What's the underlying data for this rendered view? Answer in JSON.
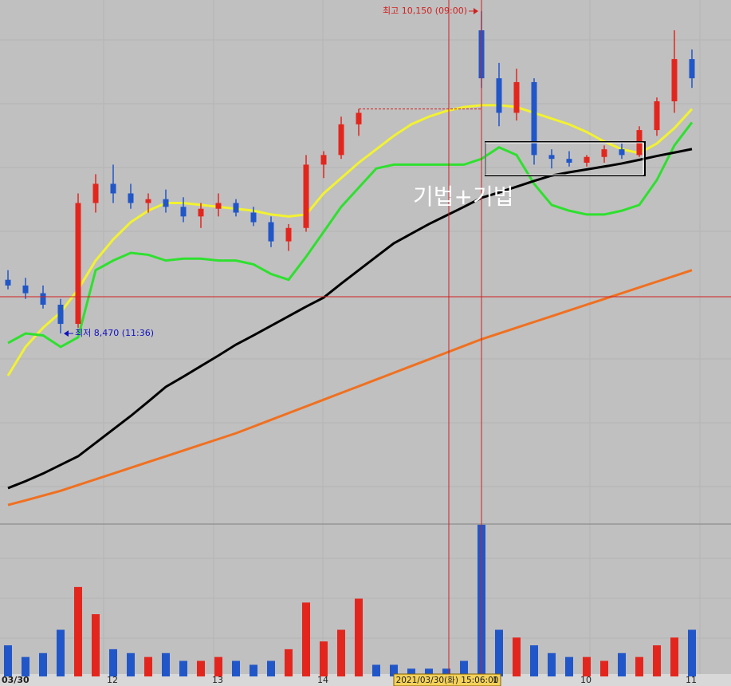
{
  "chart_data": {
    "type": "candlestick",
    "categories": [
      "03/30",
      null,
      null,
      null,
      null,
      null,
      "12",
      null,
      null,
      null,
      null,
      null,
      "13",
      null,
      null,
      null,
      null,
      null,
      "14",
      null,
      null,
      null,
      null,
      null,
      null,
      null,
      null,
      null,
      "1",
      null,
      null,
      null,
      null,
      "10",
      null,
      null,
      null,
      null,
      null,
      "11"
    ],
    "open": [
      8750,
      8720,
      8680,
      8620,
      8520,
      9150,
      9250,
      9200,
      9150,
      9170,
      9130,
      9080,
      9120,
      9150,
      9100,
      9050,
      8950,
      9020,
      9350,
      9400,
      9560,
      null,
      null,
      null,
      null,
      null,
      null,
      10050,
      9800,
      9620,
      9780,
      9400,
      9380,
      9360,
      9390,
      9430,
      9400,
      9530,
      9680,
      9900
    ],
    "high": [
      8800,
      8760,
      8720,
      8650,
      9200,
      9300,
      9350,
      9250,
      9200,
      9220,
      9180,
      9150,
      9200,
      9170,
      9130,
      9080,
      9040,
      9400,
      9420,
      9600,
      9640,
      null,
      null,
      null,
      null,
      null,
      null,
      10150,
      9880,
      9850,
      9800,
      9430,
      9420,
      9400,
      9450,
      9460,
      9550,
      9700,
      10050,
      9950
    ],
    "low": [
      8700,
      8650,
      8600,
      8470,
      8500,
      9100,
      9150,
      9120,
      9100,
      9100,
      9050,
      9020,
      9080,
      9080,
      9030,
      8920,
      8900,
      9000,
      9280,
      9380,
      9500,
      null,
      null,
      null,
      null,
      null,
      null,
      9750,
      9550,
      9580,
      9350,
      9330,
      9340,
      9340,
      9360,
      9380,
      9390,
      9500,
      9620,
      9750
    ],
    "close": [
      8720,
      8680,
      8620,
      8520,
      9150,
      9250,
      9200,
      9150,
      9170,
      9130,
      9080,
      9120,
      9150,
      9100,
      9050,
      8950,
      9020,
      9350,
      9400,
      9560,
      9620,
      null,
      null,
      null,
      null,
      null,
      null,
      9800,
      9620,
      9780,
      9400,
      9380,
      9360,
      9390,
      9430,
      9400,
      9530,
      9680,
      9900,
      9800
    ],
    "up_color": "#e3261d",
    "down_color": "#2156c8",
    "ylim": [
      7485,
      10208
    ],
    "series": [
      {
        "color": "#f2f230",
        "values": [
          8250,
          8400,
          8500,
          8580,
          8700,
          8850,
          8960,
          9050,
          9110,
          9150,
          9150,
          9140,
          9130,
          9120,
          9110,
          9090,
          9080,
          9090,
          9200,
          9280,
          9360,
          9430,
          9500,
          9560,
          9600,
          9630,
          9650,
          9660,
          9660,
          9650,
          9620,
          9590,
          9560,
          9520,
          9470,
          9430,
          9410,
          9460,
          9540,
          9640
        ]
      },
      {
        "color": "#2ee02e",
        "values": [
          8420,
          8470,
          8460,
          8400,
          8450,
          8800,
          8850,
          8890,
          8880,
          8850,
          8860,
          8860,
          8850,
          8850,
          8830,
          8780,
          8750,
          8870,
          9000,
          9130,
          9230,
          9330,
          9350,
          9350,
          9350,
          9350,
          9350,
          9380,
          9440,
          9400,
          9250,
          9140,
          9110,
          9090,
          9090,
          9110,
          9140,
          9270,
          9450,
          9570
        ]
      },
      {
        "color": "#000000",
        "values": [
          7664,
          7700,
          7740,
          7785,
          7830,
          7900,
          7970,
          8040,
          8115,
          8192,
          8245,
          8300,
          8355,
          8412,
          8460,
          8510,
          8560,
          8610,
          8657,
          8730,
          8800,
          8870,
          8940,
          8990,
          9040,
          9085,
          9130,
          9177,
          9205,
          9235,
          9265,
          9293,
          9310,
          9325,
          9340,
          9356,
          9375,
          9395,
          9413,
          9431
        ]
      },
      {
        "color": "#f07020",
        "values": [
          7576,
          7600,
          7625,
          7650,
          7680,
          7710,
          7740,
          7770,
          7800,
          7830,
          7860,
          7890,
          7920,
          7950,
          7985,
          8020,
          8055,
          8090,
          8125,
          8160,
          8195,
          8230,
          8265,
          8300,
          8335,
          8370,
          8405,
          8440,
          8470,
          8500,
          8530,
          8560,
          8590,
          8620,
          8650,
          8680,
          8710,
          8740,
          8770,
          8800
        ]
      }
    ],
    "volume": {
      "axis": "y2",
      "values": [
        40,
        25,
        30,
        60,
        115,
        80,
        35,
        30,
        25,
        30,
        20,
        20,
        25,
        20,
        15,
        20,
        35,
        95,
        45,
        60,
        100,
        15,
        15,
        10,
        10,
        10,
        20,
        195,
        60,
        50,
        40,
        30,
        25,
        25,
        20,
        30,
        25,
        40,
        50,
        60
      ]
    },
    "y2lim": [
      0,
      200
    ],
    "high_label": "최고 10,150 (09:00)",
    "low_label": "최저 8,470 (11:36)",
    "pattern_label": "기법+기법",
    "crosshair_label": "2021/03/30(화) 15:06:00"
  }
}
